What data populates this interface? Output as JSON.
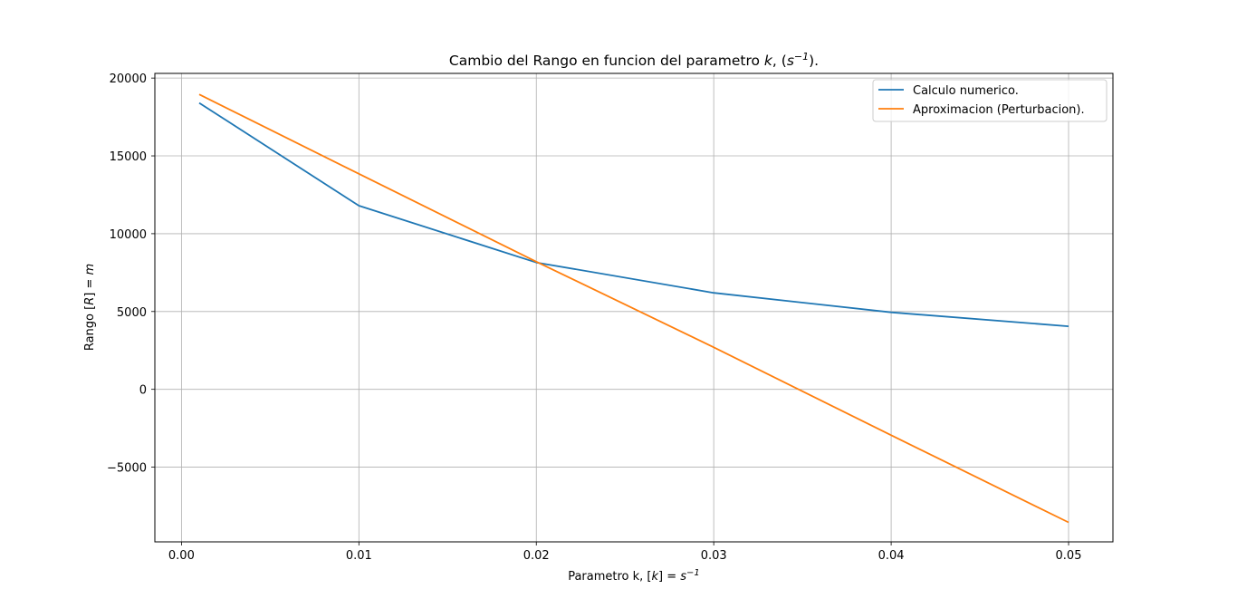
{
  "chart_data": {
    "type": "line",
    "title": {
      "prefix": "Cambio del Rango en funcion del parametro ",
      "var": "k",
      "mid": ", (",
      "base": "s",
      "exp": "−1",
      "suffix": ")."
    },
    "xlabel": {
      "prefix": "Parametro k, [",
      "var": "k",
      "mid": "] = ",
      "base": "s",
      "exp": "−1"
    },
    "ylabel": {
      "prefix": "Rango [",
      "var": "R",
      "mid": "] = ",
      "unit": "m"
    },
    "xlim": [
      -0.0015,
      0.0525
    ],
    "ylim": [
      -9800,
      20300
    ],
    "x_ticks": [
      0.0,
      0.01,
      0.02,
      0.03,
      0.04,
      0.05
    ],
    "x_tick_labels": [
      "0.00",
      "0.01",
      "0.02",
      "0.03",
      "0.04",
      "0.05"
    ],
    "y_ticks": [
      -5000,
      0,
      5000,
      10000,
      15000,
      20000
    ],
    "y_tick_labels": [
      "−5000",
      "0",
      "5000",
      "10000",
      "15000",
      "20000"
    ],
    "grid": true,
    "legend_position": "top-right",
    "series": [
      {
        "name": "Calculo numerico.",
        "color": "#1f77b4",
        "x": [
          0.001,
          0.01,
          0.02,
          0.03,
          0.04,
          0.05
        ],
        "y": [
          18400,
          11800,
          8150,
          6200,
          4950,
          4050
        ]
      },
      {
        "name": "Aproximacion (Perturbacion).",
        "color": "#ff7f0e",
        "x": [
          0.001,
          0.01,
          0.02,
          0.03,
          0.04,
          0.05
        ],
        "y": [
          18950,
          13850,
          8200,
          2700,
          -2950,
          -8550
        ]
      }
    ]
  }
}
